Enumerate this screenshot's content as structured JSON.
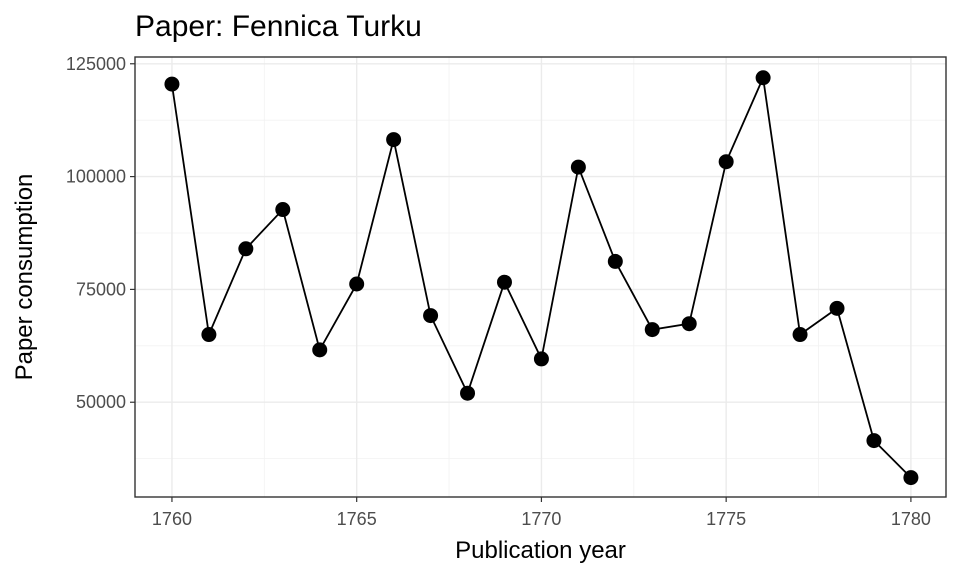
{
  "chart_data": {
    "type": "line",
    "title": "Paper: Fennica Turku",
    "xlabel": "Publication year",
    "ylabel": "Paper consumption",
    "x_ticks": [
      1760,
      1765,
      1770,
      1775,
      1780
    ],
    "y_ticks": [
      50000,
      75000,
      100000,
      125000
    ],
    "xlim": [
      1759.0,
      1780.95
    ],
    "ylim": [
      29000,
      126500
    ],
    "grid": true,
    "markers": true,
    "colors": {
      "line": "#000000",
      "point": "#000000",
      "grid": "#ebebeb"
    },
    "series": [
      {
        "x": [
          1760,
          1761,
          1762,
          1763,
          1764,
          1765,
          1766,
          1767,
          1768,
          1769,
          1770,
          1771,
          1772,
          1773,
          1774,
          1775,
          1776,
          1777,
          1778,
          1779,
          1780
        ],
        "values": [
          120500,
          65000,
          84000,
          92700,
          61600,
          76200,
          108200,
          69200,
          52000,
          76600,
          59600,
          102100,
          81200,
          66100,
          67400,
          103300,
          121900,
          65000,
          70800,
          41500,
          33300
        ]
      }
    ]
  }
}
